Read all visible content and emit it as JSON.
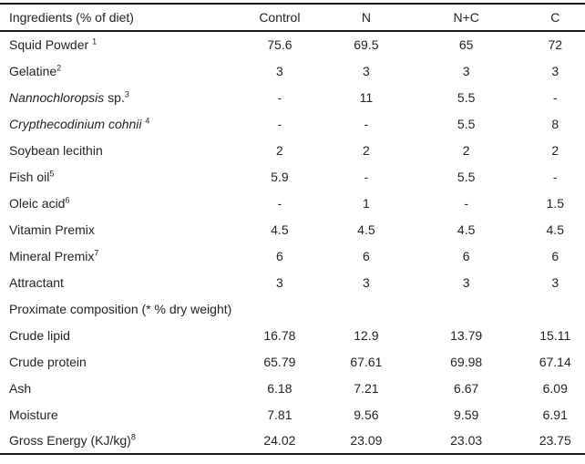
{
  "page": {
    "background_color": "#ffffff",
    "text_color": "#242424",
    "rule_color": "#1a1a1a"
  },
  "table": {
    "columns": [
      "Ingredients (% of diet)",
      "Control",
      "N",
      "N+C",
      "C"
    ],
    "rows": [
      {
        "name": [
          {
            "text": "Squid Powder "
          },
          {
            "text": "1",
            "sup": true
          }
        ],
        "values": [
          "75.6",
          "69.5",
          "65",
          "72"
        ]
      },
      {
        "name": [
          {
            "text": "Gelatine"
          },
          {
            "text": "2",
            "sup": true
          }
        ],
        "values": [
          "3",
          "3",
          "3",
          "3"
        ]
      },
      {
        "name": [
          {
            "text": "Nannochloropsis",
            "italic": true
          },
          {
            "text": " sp."
          },
          {
            "text": "3",
            "sup": true
          }
        ],
        "values": [
          "-",
          "11",
          "5.5",
          "-"
        ]
      },
      {
        "name": [
          {
            "text": "Crypthecodinium cohnii",
            "italic": true
          },
          {
            "text": " "
          },
          {
            "text": "4",
            "sup": true
          }
        ],
        "values": [
          "-",
          "-",
          "5.5",
          "8"
        ]
      },
      {
        "name": [
          {
            "text": "Soybean lecithin"
          }
        ],
        "values": [
          "2",
          "2",
          "2",
          "2"
        ]
      },
      {
        "name": [
          {
            "text": "Fish oil"
          },
          {
            "text": "5",
            "sup": true
          }
        ],
        "values": [
          "5.9",
          "-",
          "5.5",
          "-"
        ]
      },
      {
        "name": [
          {
            "text": "Oleic acid"
          },
          {
            "text": "6",
            "sup": true
          }
        ],
        "values": [
          "-",
          "1",
          "-",
          "1.5"
        ]
      },
      {
        "name": [
          {
            "text": "Vitamin Premix"
          }
        ],
        "values": [
          "4.5",
          "4.5",
          "4.5",
          "4.5"
        ]
      },
      {
        "name": [
          {
            "text": "Mineral Premix"
          },
          {
            "text": "7",
            "sup": true
          }
        ],
        "values": [
          "6",
          "6",
          "6",
          "6"
        ]
      },
      {
        "name": [
          {
            "text": "Attractant"
          }
        ],
        "values": [
          "3",
          "3",
          "3",
          "3"
        ]
      },
      {
        "name": [
          {
            "text": "Proximate composition (* % dry weight)"
          }
        ],
        "section": true,
        "values": [
          "",
          "",
          "",
          ""
        ]
      },
      {
        "name": [
          {
            "text": "Crude lipid"
          }
        ],
        "values": [
          "16.78",
          "12.9",
          "13.79",
          "15.11"
        ]
      },
      {
        "name": [
          {
            "text": "Crude protein"
          }
        ],
        "values": [
          "65.79",
          "67.61",
          "69.98",
          "67.14"
        ]
      },
      {
        "name": [
          {
            "text": "Ash"
          }
        ],
        "values": [
          "6.18",
          "7.21",
          "6.67",
          "6.09"
        ]
      },
      {
        "name": [
          {
            "text": "Moisture"
          }
        ],
        "values": [
          "7.81",
          "9.56",
          "9.59",
          "6.91"
        ]
      },
      {
        "name": [
          {
            "text": "Gross Energy (KJ/kg)"
          },
          {
            "text": "8",
            "sup": true
          }
        ],
        "values": [
          "24.02",
          "23.09",
          "23.03",
          "23.75"
        ]
      }
    ]
  }
}
